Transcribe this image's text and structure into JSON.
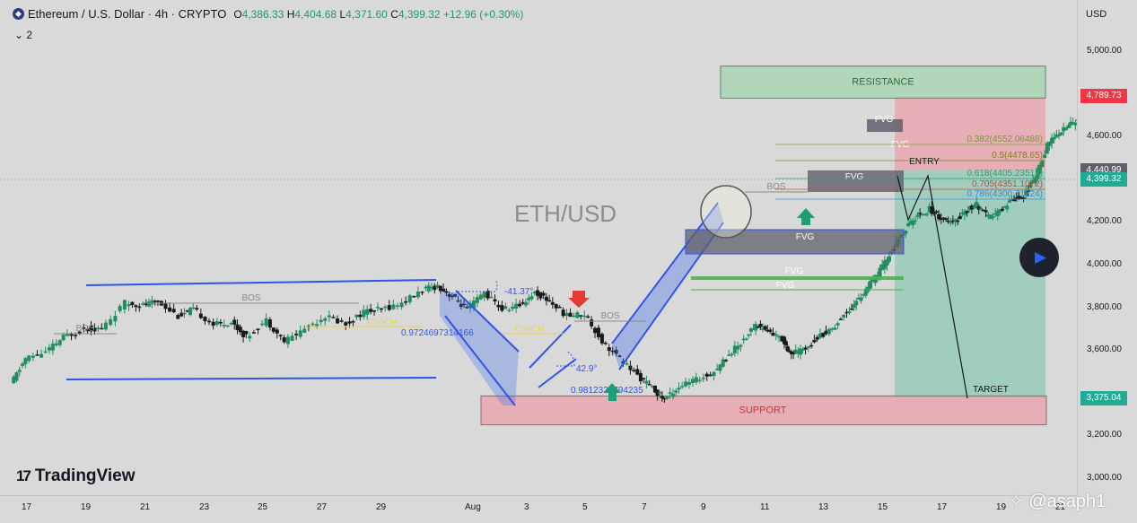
{
  "header": {
    "symbol": "Ethereum / U.S. Dollar · 4h · CRYPTO",
    "o_label": "O",
    "o_value": "4,386.33",
    "h_label": "H",
    "h_value": "4,404.68",
    "l_label": "L",
    "l_value": "4,371.60",
    "c_label": "C",
    "c_value": "4,399.32",
    "change": "+12.96 (+0.30%)",
    "indicators_toggle": "⌄ 2"
  },
  "currency": "USD",
  "brand": "TradingView",
  "watermark": "@asaph1",
  "price_tags": [
    {
      "value": "4,789.73",
      "color": "#f23645"
    },
    {
      "value": "4,440.99",
      "color": "#5d606b"
    },
    {
      "value": "4,399.32",
      "color": "#22ab94"
    },
    {
      "value": "3,375.04",
      "color": "#22ab94"
    }
  ],
  "colors": {
    "up": "#1f8f5e",
    "down": "#1a1a1a",
    "channel": "#2f54eb",
    "fvg": "#5f5f6b",
    "support": "#e8a0a8",
    "resistance": "#a8d4b0"
  },
  "chart_data": {
    "type": "candlestick",
    "title": "ETH/USD",
    "ylim": [
      2950,
      5100
    ],
    "y_ticks": [
      "5,000.00",
      "4,800.00",
      "4,600.00",
      "4,400.00",
      "4,200.00",
      "4,000.00",
      "3,800.00",
      "3,600.00",
      "3,400.00",
      "3,200.00",
      "3,000.00"
    ],
    "x_ticks": [
      "17",
      "19",
      "21",
      "23",
      "25",
      "27",
      "29",
      "Aug",
      "3",
      "5",
      "7",
      "9",
      "11",
      "13",
      "15",
      "17",
      "19",
      "21"
    ],
    "zones": [
      {
        "label": "RESISTANCE",
        "low": 4780,
        "high": 4930
      },
      {
        "label": "SUPPORT",
        "low": 3250,
        "high": 3385
      }
    ],
    "fvg_labels": [
      "FVG",
      "FVG",
      "FVG",
      "FVG",
      "FVG",
      "FVG"
    ],
    "bos_labels": [
      "BOS",
      "BOS",
      "BOS",
      "BOS"
    ],
    "choch_labels": [
      "ChoCH",
      "ChoCH"
    ],
    "fib_levels": [
      {
        "label": "0.382(4552.06488)",
        "color": "#7a9a3a"
      },
      {
        "label": "0.5(4478.65)",
        "color": "#8a7a20"
      },
      {
        "label": "0.618(4405.23512)",
        "color": "#3a9a6a"
      },
      {
        "label": "0.705(4351.1072)",
        "color": "#d0453a"
      },
      {
        "label": "0.786(4300.71224)",
        "color": "#3a8ad0"
      }
    ],
    "annotations": [
      "ENTRY",
      "TARGET",
      "-41.37°",
      "42.9°",
      "0.9724697314166",
      "0.9812326794235"
    ],
    "entry_price": 4440.99,
    "stop_price": 4789.73,
    "target_price": 3375.04,
    "last_price": 4399.32,
    "key_points": [
      {
        "x": "Jul 16",
        "y": 3600
      },
      {
        "x": "Jul 28",
        "y": 3940
      },
      {
        "x": "Aug 2",
        "y": 3360
      },
      {
        "x": "Aug 4",
        "y": 3735
      },
      {
        "x": "Aug 5",
        "y": 3570
      },
      {
        "x": "Aug 14",
        "y": 4790
      },
      {
        "x": "Aug 15",
        "y": 4350
      },
      {
        "x": "Aug 18",
        "y": 3375
      }
    ]
  }
}
